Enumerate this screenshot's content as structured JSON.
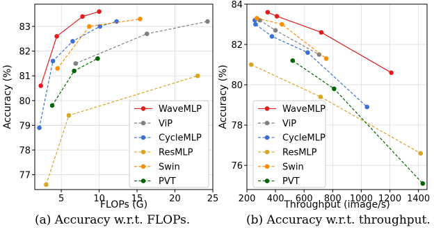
{
  "captions": [
    "(a) Accuracy w.r.t. FLOPs.",
    "(b) Accuracy w.r.t. throughput."
  ],
  "chart_data": [
    {
      "type": "line",
      "xlabel": "FLOPs (G)",
      "ylabel": "Accuracy (%)",
      "xlim": [
        1.5,
        25
      ],
      "ylim": [
        76.4,
        83.9
      ],
      "xticks": [
        5,
        10,
        15,
        20,
        25
      ],
      "yticks": [
        77,
        78,
        79,
        80,
        81,
        82,
        83
      ],
      "grid": true,
      "legend_position": "lower-right",
      "series": [
        {
          "name": "WaveMLP",
          "color": "#e41a1c",
          "linestyle": "solid",
          "x": [
            2.3,
            4.4,
            7.8,
            10.0
          ],
          "y": [
            80.6,
            82.6,
            83.4,
            83.6
          ]
        },
        {
          "name": "ViP",
          "color": "#808080",
          "linestyle": "dashed",
          "x": [
            6.9,
            16.3,
            24.3
          ],
          "y": [
            81.5,
            82.7,
            83.2
          ]
        },
        {
          "name": "CycleMLP",
          "color": "#3a6fd8",
          "linestyle": "dashed",
          "x": [
            2.1,
            3.9,
            6.5,
            10.1,
            12.3
          ],
          "y": [
            78.9,
            81.6,
            82.4,
            83.0,
            83.2
          ]
        },
        {
          "name": "ResMLP",
          "color": "#daa520",
          "linestyle": "dashed",
          "x": [
            3.0,
            6.0,
            23.0
          ],
          "y": [
            76.6,
            79.4,
            81.0
          ]
        },
        {
          "name": "Swin",
          "color": "#ff8c00",
          "linestyle": "dashed",
          "x": [
            4.5,
            8.7,
            15.4
          ],
          "y": [
            81.3,
            83.0,
            83.3
          ]
        },
        {
          "name": "PVT",
          "color": "#006400",
          "linestyle": "dashed",
          "x": [
            3.8,
            6.7,
            9.8
          ],
          "y": [
            79.8,
            81.2,
            81.7
          ]
        }
      ]
    },
    {
      "type": "line",
      "xlabel": "Throughput (image/s)",
      "ylabel": "Accuracy (%)",
      "xlim": [
        200,
        1460
      ],
      "ylim": [
        74.8,
        84.0
      ],
      "xticks": [
        200,
        400,
        600,
        800,
        1000,
        1200,
        1400
      ],
      "yticks": [
        76,
        78,
        80,
        82,
        84
      ],
      "grid": true,
      "legend_position": "lower-left",
      "series": [
        {
          "name": "WaveMLP",
          "color": "#e41a1c",
          "linestyle": "solid",
          "x": [
            345,
            410,
            720,
            1210
          ],
          "y": [
            83.6,
            83.4,
            82.6,
            80.6
          ]
        },
        {
          "name": "ViP",
          "color": "#808080",
          "linestyle": "dashed",
          "x": [
            290,
            400,
            705
          ],
          "y": [
            83.2,
            82.7,
            81.5
          ]
        },
        {
          "name": "CycleMLP",
          "color": "#3a6fd8",
          "linestyle": "dashed",
          "x": [
            255,
            260,
            375,
            625,
            1040
          ],
          "y": [
            83.2,
            83.0,
            82.4,
            81.6,
            78.9
          ]
        },
        {
          "name": "ResMLP",
          "color": "#daa520",
          "linestyle": "dashed",
          "x": [
            230,
            715,
            1415
          ],
          "y": [
            81.0,
            79.4,
            76.6
          ]
        },
        {
          "name": "Swin",
          "color": "#ff8c00",
          "linestyle": "dashed",
          "x": [
            270,
            445,
            755
          ],
          "y": [
            83.3,
            83.0,
            81.3
          ]
        },
        {
          "name": "PVT",
          "color": "#006400",
          "linestyle": "dashed",
          "x": [
            520,
            810,
            1430
          ],
          "y": [
            81.2,
            79.8,
            75.1
          ]
        }
      ]
    }
  ]
}
